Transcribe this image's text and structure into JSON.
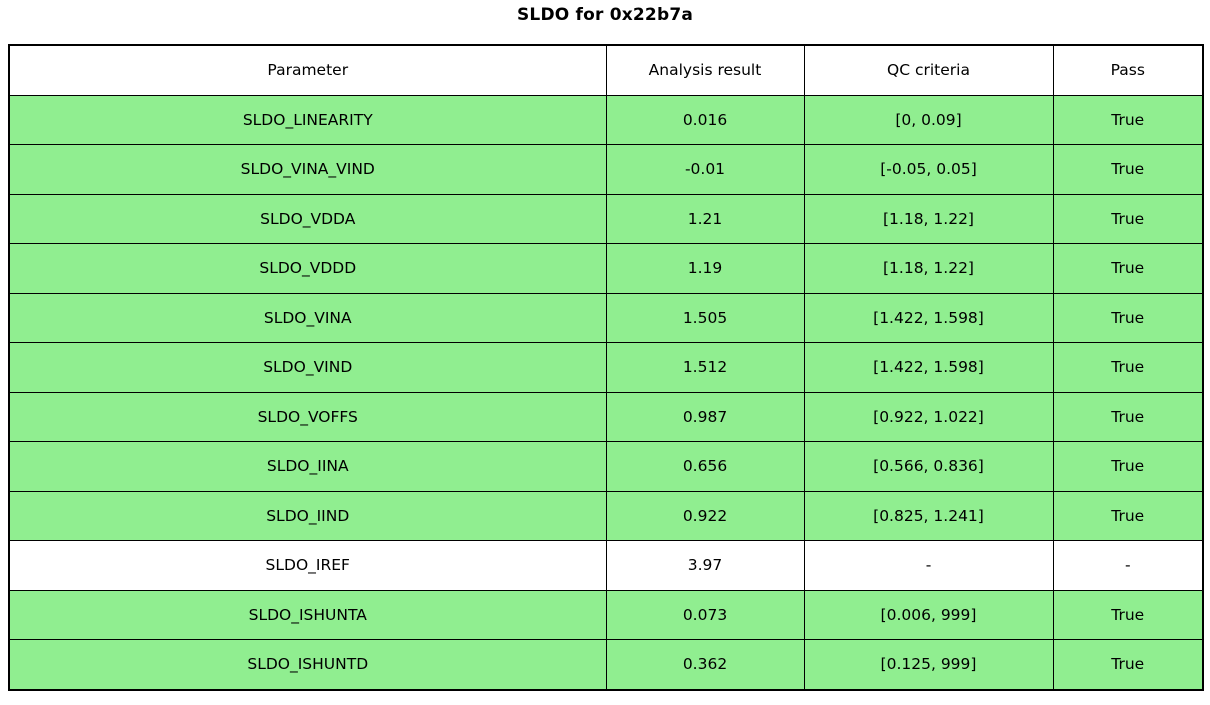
{
  "title": "SLDO for 0x22b7a",
  "colors": {
    "pass_row_bg": "#90EE90",
    "neutral_row_bg": "#FFFFFF",
    "border": "#000000",
    "text": "#000000"
  },
  "chart_data": {
    "type": "table",
    "title": "SLDO for 0x22b7a",
    "columns": [
      "Parameter",
      "Analysis result",
      "QC criteria",
      "Pass"
    ],
    "rows": [
      {
        "parameter": "SLDO_LINEARITY",
        "analysis_result": "0.016",
        "qc_criteria": "[0, 0.09]",
        "pass": "True",
        "highlighted": true
      },
      {
        "parameter": "SLDO_VINA_VIND",
        "analysis_result": "-0.01",
        "qc_criteria": "[-0.05, 0.05]",
        "pass": "True",
        "highlighted": true
      },
      {
        "parameter": "SLDO_VDDA",
        "analysis_result": "1.21",
        "qc_criteria": "[1.18, 1.22]",
        "pass": "True",
        "highlighted": true
      },
      {
        "parameter": "SLDO_VDDD",
        "analysis_result": "1.19",
        "qc_criteria": "[1.18, 1.22]",
        "pass": "True",
        "highlighted": true
      },
      {
        "parameter": "SLDO_VINA",
        "analysis_result": "1.505",
        "qc_criteria": "[1.422, 1.598]",
        "pass": "True",
        "highlighted": true
      },
      {
        "parameter": "SLDO_VIND",
        "analysis_result": "1.512",
        "qc_criteria": "[1.422, 1.598]",
        "pass": "True",
        "highlighted": true
      },
      {
        "parameter": "SLDO_VOFFS",
        "analysis_result": "0.987",
        "qc_criteria": "[0.922, 1.022]",
        "pass": "True",
        "highlighted": true
      },
      {
        "parameter": "SLDO_IINA",
        "analysis_result": "0.656",
        "qc_criteria": "[0.566, 0.836]",
        "pass": "True",
        "highlighted": true
      },
      {
        "parameter": "SLDO_IIND",
        "analysis_result": "0.922",
        "qc_criteria": "[0.825, 1.241]",
        "pass": "True",
        "highlighted": true
      },
      {
        "parameter": "SLDO_IREF",
        "analysis_result": "3.97",
        "qc_criteria": "-",
        "pass": "-",
        "highlighted": false
      },
      {
        "parameter": "SLDO_ISHUNTA",
        "analysis_result": "0.073",
        "qc_criteria": "[0.006, 999]",
        "pass": "True",
        "highlighted": true
      },
      {
        "parameter": "SLDO_ISHUNTD",
        "analysis_result": "0.362",
        "qc_criteria": "[0.125, 999]",
        "pass": "True",
        "highlighted": true
      }
    ]
  }
}
